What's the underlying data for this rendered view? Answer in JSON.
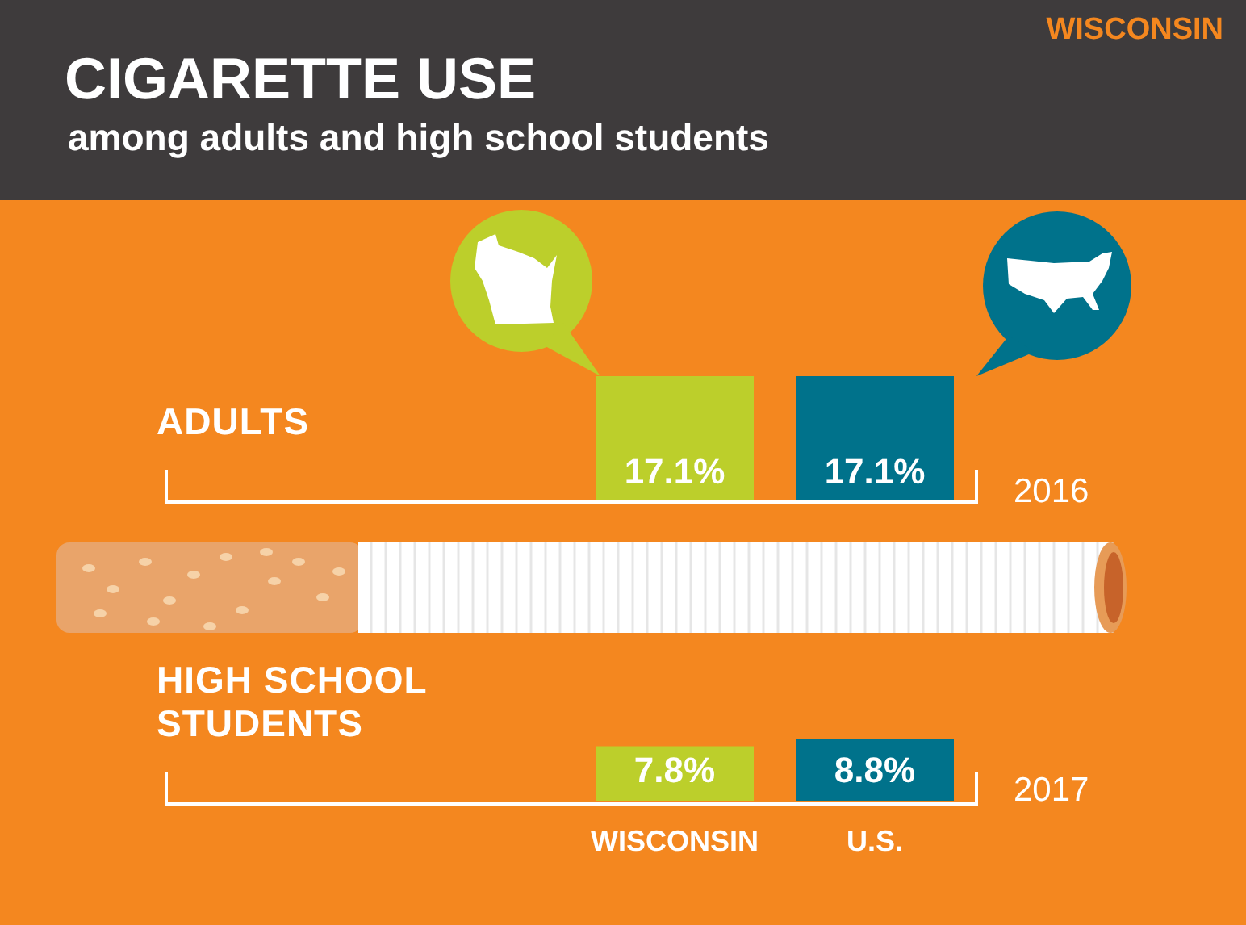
{
  "chart_data": [
    {
      "type": "bar",
      "title": "CIGARETTE USE",
      "subtitle": "among adults and high school students",
      "annotations": [
        "WISCONSIN"
      ],
      "ylabel": "ADULTS",
      "xlabel": "2016",
      "categories": [
        null,
        null
      ],
      "values": [
        17.1,
        17.1
      ],
      "value_labels": [
        "17.1%",
        "17.1%"
      ],
      "colors": [
        "#bccf2b",
        "#00728b"
      ],
      "tick_labels": false
    },
    {
      "type": "bar",
      "ylabel": "HIGH SCHOOL STUDENTS",
      "xlabel": "2017",
      "categories": [
        "WISCONSIN",
        "U.S."
      ],
      "values": [
        7.8,
        8.8
      ],
      "value_labels": [
        "7.8%",
        "8.8%"
      ],
      "colors": [
        "#bccf2b",
        "#00728b"
      ],
      "tick_labels": "x"
    }
  ]
}
